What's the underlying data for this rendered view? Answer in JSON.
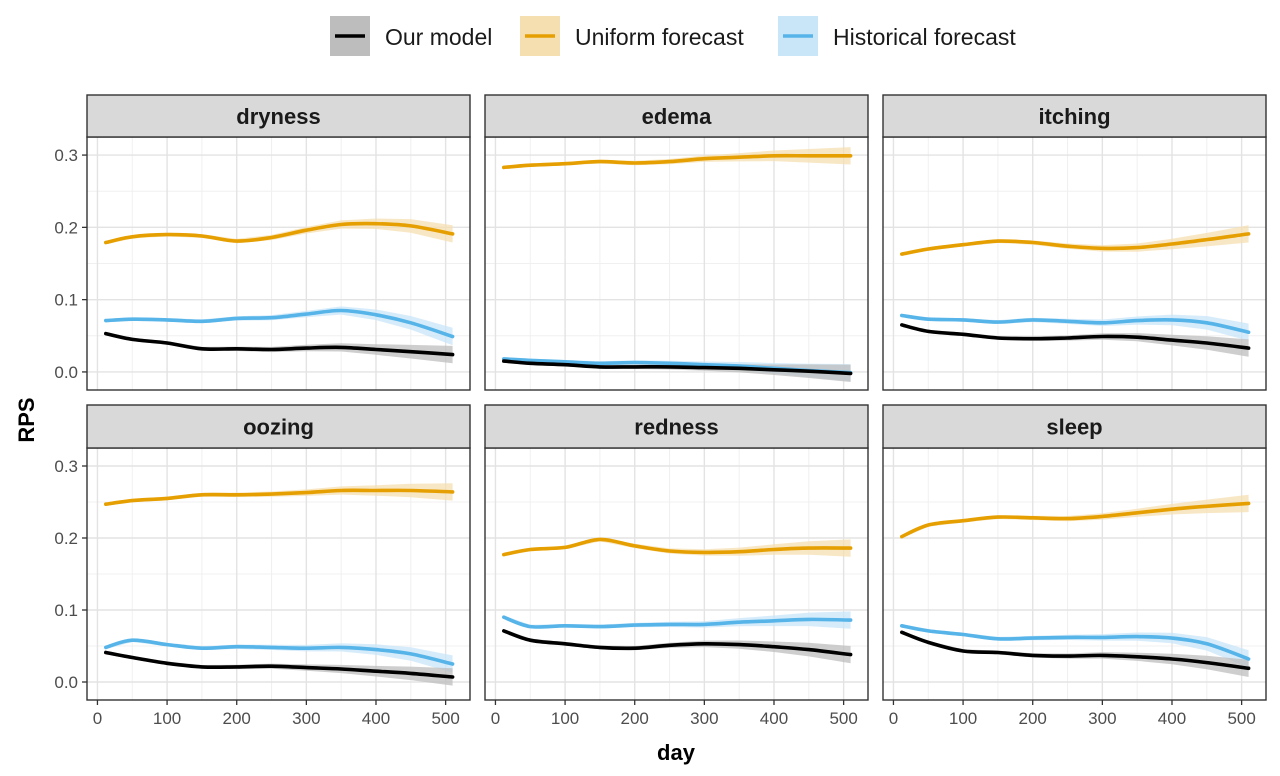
{
  "chart_data": {
    "type": "line",
    "xlabel": "day",
    "ylabel": "RPS",
    "xlim": [
      -15,
      535
    ],
    "ylim": [
      -0.025,
      0.325
    ],
    "x_ticks": [
      0,
      100,
      200,
      300,
      400,
      500
    ],
    "x_tick_labels": [
      "0",
      "100",
      "200",
      "300",
      "400",
      "500"
    ],
    "y_ticks": [
      0.0,
      0.1,
      0.2,
      0.3
    ],
    "y_tick_labels": [
      "0.0",
      "0.1",
      "0.2",
      "0.3"
    ],
    "grid": true,
    "legend_position": "top",
    "legend": [
      {
        "name": "Our model",
        "color": "#000000",
        "fill": "#bdbdbd"
      },
      {
        "name": "Uniform forecast",
        "color": "#E69F00",
        "fill": "#f5dfb0"
      },
      {
        "name": "Historical forecast",
        "color": "#56B4E9",
        "fill": "#c9e6f8"
      }
    ],
    "x": [
      12,
      50,
      100,
      150,
      200,
      250,
      300,
      350,
      400,
      450,
      510
    ],
    "panels": [
      {
        "title": "dryness",
        "series": [
          {
            "name": "Our model",
            "values": [
              0.053,
              0.045,
              0.04,
              0.032,
              0.032,
              0.031,
              0.033,
              0.034,
              0.031,
              0.028,
              0.024
            ]
          },
          {
            "name": "Uniform forecast",
            "values": [
              0.179,
              0.187,
              0.19,
              0.188,
              0.181,
              0.186,
              0.196,
              0.204,
              0.205,
              0.202,
              0.191
            ]
          },
          {
            "name": "Historical forecast",
            "values": [
              0.071,
              0.073,
              0.072,
              0.07,
              0.074,
              0.075,
              0.08,
              0.085,
              0.079,
              0.068,
              0.049
            ]
          }
        ]
      },
      {
        "title": "edema",
        "series": [
          {
            "name": "Our model",
            "values": [
              0.015,
              0.012,
              0.01,
              0.007,
              0.007,
              0.007,
              0.006,
              0.005,
              0.003,
              0.001,
              -0.002
            ]
          },
          {
            "name": "Uniform forecast",
            "values": [
              0.283,
              0.286,
              0.288,
              0.291,
              0.289,
              0.291,
              0.295,
              0.297,
              0.299,
              0.299,
              0.299
            ]
          },
          {
            "name": "Historical forecast",
            "values": [
              0.018,
              0.016,
              0.014,
              0.012,
              0.013,
              0.012,
              0.01,
              0.008,
              0.005,
              0.002,
              -0.001
            ]
          }
        ]
      },
      {
        "title": "itching",
        "series": [
          {
            "name": "Our model",
            "values": [
              0.065,
              0.056,
              0.052,
              0.047,
              0.046,
              0.047,
              0.049,
              0.048,
              0.044,
              0.04,
              0.033
            ]
          },
          {
            "name": "Uniform forecast",
            "values": [
              0.163,
              0.17,
              0.176,
              0.181,
              0.179,
              0.174,
              0.171,
              0.172,
              0.177,
              0.183,
              0.191
            ]
          },
          {
            "name": "Historical forecast",
            "values": [
              0.078,
              0.073,
              0.072,
              0.069,
              0.072,
              0.07,
              0.068,
              0.071,
              0.072,
              0.068,
              0.055
            ]
          }
        ]
      },
      {
        "title": "oozing",
        "series": [
          {
            "name": "Our model",
            "values": [
              0.041,
              0.034,
              0.026,
              0.021,
              0.021,
              0.022,
              0.02,
              0.018,
              0.015,
              0.012,
              0.007
            ]
          },
          {
            "name": "Uniform forecast",
            "values": [
              0.247,
              0.252,
              0.255,
              0.26,
              0.26,
              0.261,
              0.263,
              0.266,
              0.266,
              0.266,
              0.264
            ]
          },
          {
            "name": "Historical forecast",
            "values": [
              0.048,
              0.058,
              0.052,
              0.047,
              0.049,
              0.048,
              0.047,
              0.048,
              0.045,
              0.039,
              0.025
            ]
          }
        ]
      },
      {
        "title": "redness",
        "series": [
          {
            "name": "Our model",
            "values": [
              0.071,
              0.058,
              0.053,
              0.048,
              0.047,
              0.051,
              0.053,
              0.052,
              0.049,
              0.045,
              0.038
            ]
          },
          {
            "name": "Uniform forecast",
            "values": [
              0.177,
              0.184,
              0.187,
              0.198,
              0.189,
              0.182,
              0.18,
              0.181,
              0.184,
              0.186,
              0.186
            ]
          },
          {
            "name": "Historical forecast",
            "values": [
              0.09,
              0.077,
              0.078,
              0.077,
              0.079,
              0.08,
              0.08,
              0.083,
              0.085,
              0.087,
              0.086
            ]
          }
        ]
      },
      {
        "title": "sleep",
        "series": [
          {
            "name": "Our model",
            "values": [
              0.069,
              0.055,
              0.043,
              0.041,
              0.037,
              0.036,
              0.037,
              0.035,
              0.032,
              0.027,
              0.019
            ]
          },
          {
            "name": "Uniform forecast",
            "values": [
              0.202,
              0.218,
              0.224,
              0.229,
              0.228,
              0.227,
              0.23,
              0.235,
              0.24,
              0.244,
              0.248
            ]
          },
          {
            "name": "Historical forecast",
            "values": [
              0.078,
              0.071,
              0.066,
              0.06,
              0.061,
              0.062,
              0.062,
              0.063,
              0.061,
              0.053,
              0.032
            ]
          }
        ]
      }
    ]
  }
}
